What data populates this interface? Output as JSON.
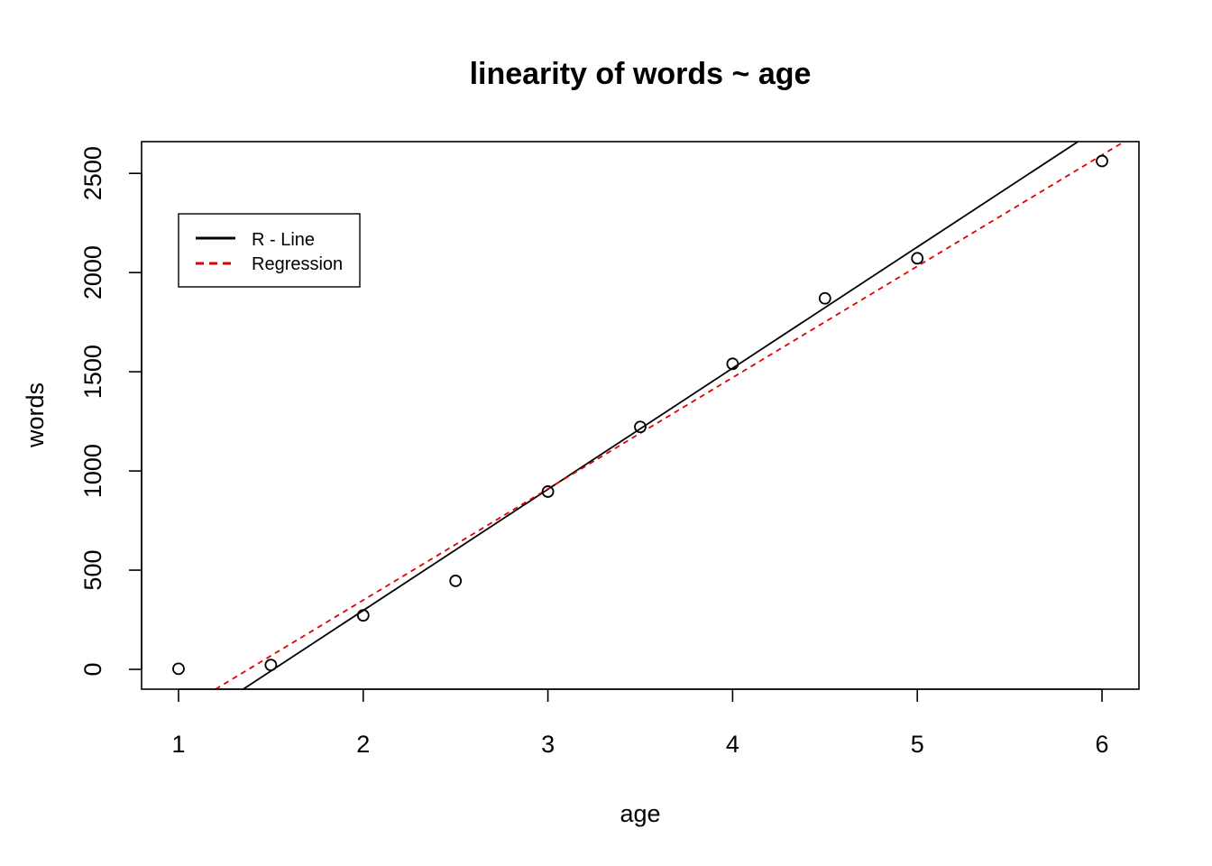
{
  "chart_data": {
    "type": "scatter",
    "title": "linearity of words ~ age",
    "xlabel": "age",
    "ylabel": "words",
    "xlim": [
      0.8,
      6.2
    ],
    "ylim": [
      -100,
      2660
    ],
    "xticks": [
      1,
      2,
      3,
      4,
      5,
      6
    ],
    "xtick_labels": [
      "1",
      "2",
      "3",
      "4",
      "5",
      "6"
    ],
    "yticks": [
      0,
      500,
      1000,
      1500,
      2000,
      2500
    ],
    "ytick_labels": [
      "0",
      "500",
      "1000",
      "1500",
      "2000",
      "2500"
    ],
    "grid": false,
    "points": {
      "x": [
        1,
        1.5,
        2,
        2.5,
        3,
        3.5,
        4,
        4.5,
        5,
        6
      ],
      "y": [
        3,
        22,
        272,
        446,
        896,
        1222,
        1540,
        1870,
        2072,
        2562
      ]
    },
    "lines": [
      {
        "name": "R - Line",
        "color": "#000000",
        "dash": "solid",
        "x": [
          1.35,
          5.87
        ],
        "y": [
          -100,
          2660
        ]
      },
      {
        "name": "Regression",
        "color": "#e00000",
        "dash": "dashed",
        "x": [
          1.2,
          6.12
        ],
        "y": [
          -100,
          2660
        ]
      }
    ],
    "legend": {
      "position": "top-left",
      "entries": [
        {
          "label": "R - Line",
          "color": "#000000",
          "dash": "solid"
        },
        {
          "label": "Regression",
          "color": "#e00000",
          "dash": "dashed"
        }
      ]
    }
  }
}
